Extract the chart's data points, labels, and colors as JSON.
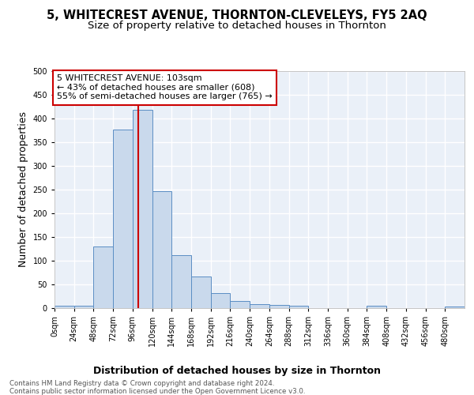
{
  "title": "5, WHITECREST AVENUE, THORNTON-CLEVELEYS, FY5 2AQ",
  "subtitle": "Size of property relative to detached houses in Thornton",
  "xlabel": "Distribution of detached houses by size in Thornton",
  "ylabel": "Number of detached properties",
  "footnote1": "Contains HM Land Registry data © Crown copyright and database right 2024.",
  "footnote2": "Contains public sector information licensed under the Open Government Licence v3.0.",
  "bar_edges": [
    0,
    24,
    48,
    72,
    96,
    120,
    144,
    168,
    192,
    216,
    240,
    264,
    288,
    312,
    336,
    360,
    384,
    408,
    432,
    456,
    480,
    504
  ],
  "bar_heights": [
    5,
    5,
    130,
    377,
    418,
    246,
    111,
    66,
    32,
    15,
    8,
    6,
    5,
    0,
    0,
    0,
    5,
    0,
    0,
    0,
    4
  ],
  "bar_color": "#c9d9ec",
  "bar_edge_color": "#5b8ec4",
  "vline_x": 103,
  "vline_color": "#cc0000",
  "annotation_line1": "5 WHITECREST AVENUE: 103sqm",
  "annotation_line2": "← 43% of detached houses are smaller (608)",
  "annotation_line3": "55% of semi-detached houses are larger (765) →",
  "annotation_box_color": "white",
  "annotation_box_edge": "#cc0000",
  "ylim": [
    0,
    500
  ],
  "xlim": [
    0,
    504
  ],
  "xtick_positions": [
    0,
    24,
    48,
    72,
    96,
    120,
    144,
    168,
    192,
    216,
    240,
    264,
    288,
    312,
    336,
    360,
    384,
    408,
    432,
    456,
    480
  ],
  "xtick_labels": [
    "0sqm",
    "24sqm",
    "48sqm",
    "72sqm",
    "96sqm",
    "120sqm",
    "144sqm",
    "168sqm",
    "192sqm",
    "216sqm",
    "240sqm",
    "264sqm",
    "288sqm",
    "312sqm",
    "336sqm",
    "360sqm",
    "384sqm",
    "408sqm",
    "432sqm",
    "456sqm",
    "480sqm"
  ],
  "bg_color": "#eaf0f8",
  "grid_color": "white",
  "title_fontsize": 10.5,
  "subtitle_fontsize": 9.5,
  "axis_label_fontsize": 9,
  "tick_fontsize": 7,
  "annotation_fontsize": 8,
  "footnote_fontsize": 6.2
}
